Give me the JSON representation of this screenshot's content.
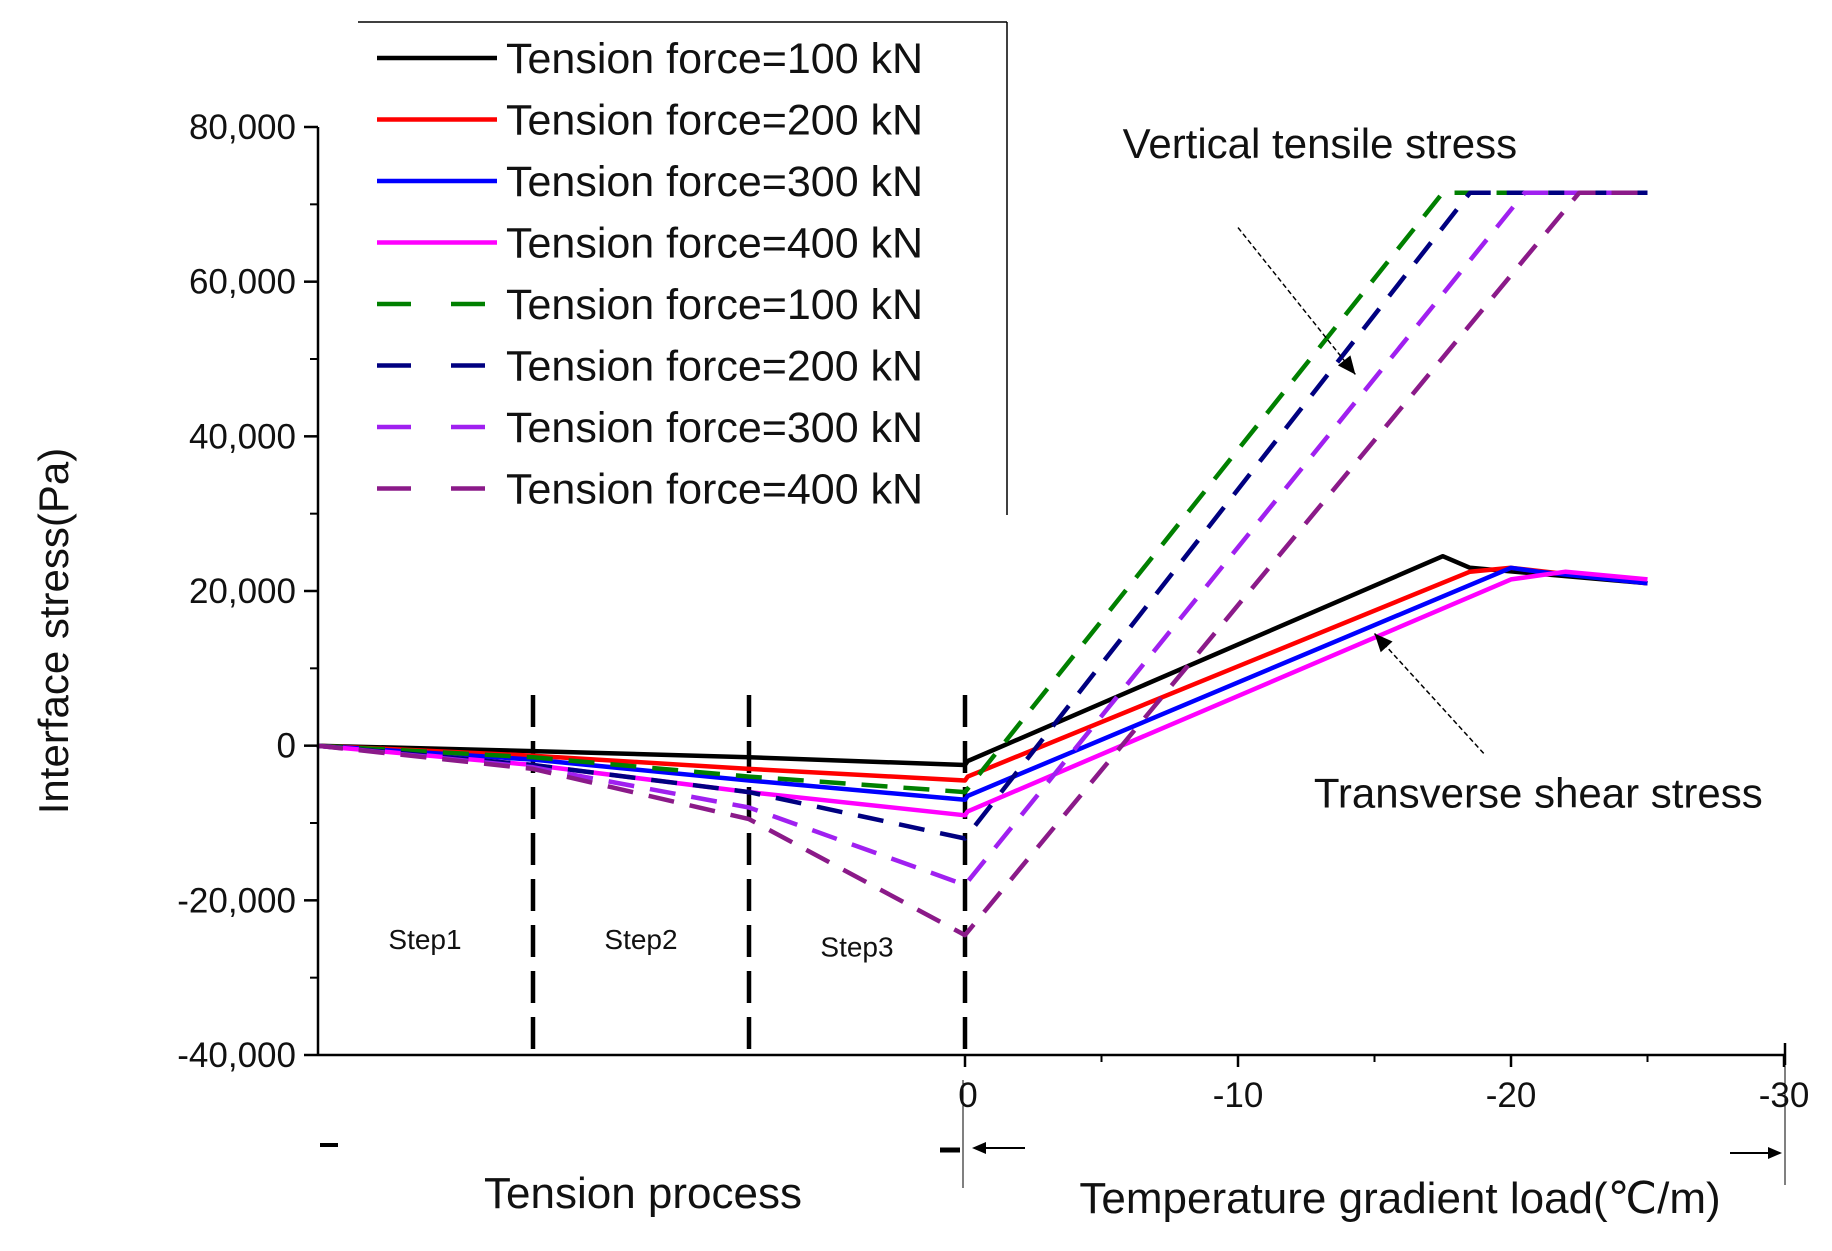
{
  "chart_data": {
    "type": "line",
    "title": "",
    "ylabel": "Interface stress(Pa)",
    "ylim": [
      -40000,
      80000
    ],
    "yticks": [
      -40000,
      -20000,
      0,
      20000,
      40000,
      60000,
      80000
    ],
    "ytick_labels": [
      "-40,000",
      "-20,000",
      "0",
      "20,000",
      "40,000",
      "60,000",
      "80,000"
    ],
    "xlim": [
      -3,
      30
    ],
    "x_note": "x < 0 is the tension process (steps 1-3, one unit per step); x >= 0 is the temperature gradient load magnitude in degrees C per m",
    "xticks": [
      0,
      10,
      20,
      30
    ],
    "xtick_labels": [
      "0",
      "-10",
      "-20",
      "-30"
    ],
    "xlabel_left": "Tension process",
    "xlabel_right": "Temperature gradient load(℃/m)",
    "step_boundaries": [
      -2,
      -1,
      0
    ],
    "step_labels": [
      {
        "text": "Step1",
        "x": -2.5,
        "y": -25000
      },
      {
        "text": "Step2",
        "x": -1.5,
        "y": -25000
      },
      {
        "text": "Step3",
        "x": -0.5,
        "y": -26000
      }
    ],
    "annotations": [
      {
        "text": "Vertical tensile stress",
        "text_x": 13,
        "text_y": 76000,
        "arrow_from": [
          10,
          67000
        ],
        "arrow_to": [
          14.3,
          48000
        ]
      },
      {
        "text": "Transverse shear stress",
        "text_x": 21,
        "text_y": -8000,
        "arrow_from": [
          19,
          -1000
        ],
        "arrow_to": [
          15,
          14500
        ]
      }
    ],
    "legend_position": "top-left",
    "series": [
      {
        "name": "Tension force=100 kN",
        "style": "solid",
        "color": "#000000",
        "x": [
          -3,
          -2,
          -1,
          0,
          0.1,
          17.5,
          18.5,
          25
        ],
        "values": [
          0,
          -700,
          -1500,
          -2500,
          -2000,
          24500,
          23000,
          21000
        ]
      },
      {
        "name": "Tension force=200 kN",
        "style": "solid",
        "color": "#ff0000",
        "x": [
          -3,
          -2,
          -1,
          0,
          0.1,
          18.5,
          20,
          25
        ],
        "values": [
          0,
          -1300,
          -3000,
          -4500,
          -4000,
          22500,
          23000,
          21000
        ]
      },
      {
        "name": "Tension force=300 kN",
        "style": "solid",
        "color": "#0000ff",
        "x": [
          -3,
          -2,
          -1,
          0,
          0.1,
          20,
          21,
          25
        ],
        "values": [
          0,
          -1800,
          -4500,
          -7000,
          -6500,
          23000,
          22500,
          21000
        ]
      },
      {
        "name": "Tension force=400 kN",
        "style": "solid",
        "color": "#ff00ff",
        "x": [
          -3,
          -2,
          -1,
          0,
          0.1,
          20,
          22,
          25
        ],
        "values": [
          0,
          -2500,
          -6000,
          -9000,
          -8500,
          21500,
          22500,
          21500
        ]
      },
      {
        "name": "Tension force=100 kN",
        "style": "dashed",
        "color": "#008000",
        "x": [
          -3,
          -2,
          -1,
          0,
          17.5,
          25
        ],
        "values": [
          0,
          -1500,
          -4000,
          -6000,
          71500,
          71500
        ]
      },
      {
        "name": "Tension force=200 kN",
        "style": "dashed",
        "color": "#000080",
        "x": [
          -3,
          -2,
          -1,
          0,
          18.5,
          25
        ],
        "values": [
          0,
          -2500,
          -6000,
          -12000,
          71500,
          71500
        ]
      },
      {
        "name": "Tension force=300 kN",
        "style": "dashed",
        "color": "#a020f0",
        "x": [
          -3,
          -2,
          -1,
          0,
          20.5,
          25
        ],
        "values": [
          0,
          -2800,
          -8000,
          -18000,
          71500,
          71500
        ]
      },
      {
        "name": "Tension force=400 kN",
        "style": "dashed",
        "color": "#8b1a89",
        "x": [
          -3,
          -2,
          -1,
          0,
          22.5,
          25
        ],
        "values": [
          0,
          -3000,
          -9500,
          -24500,
          71500,
          71500
        ]
      }
    ]
  }
}
